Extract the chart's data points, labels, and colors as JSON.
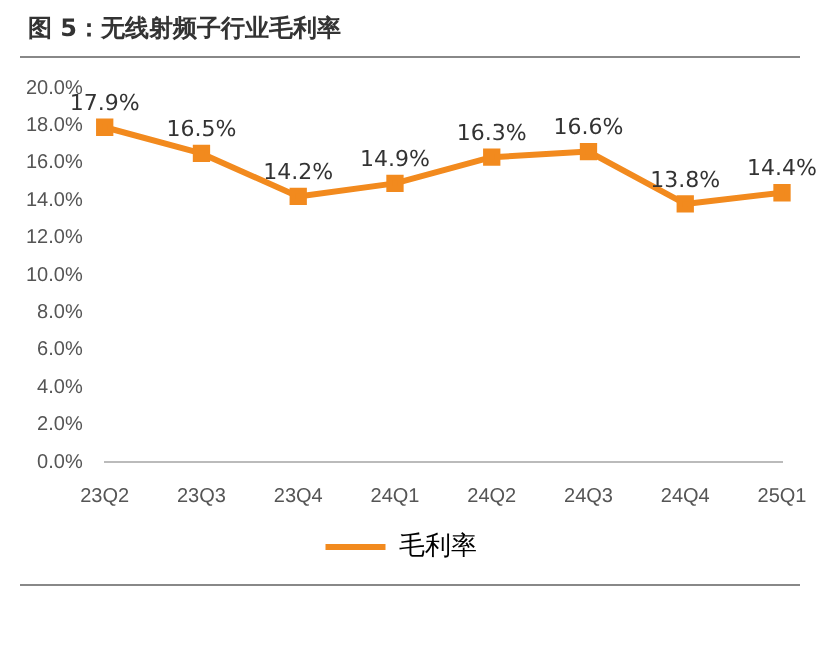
{
  "chart_data": {
    "type": "line",
    "title": "图 5：无线射频子行业毛利率",
    "categories": [
      "23Q2",
      "23Q3",
      "23Q4",
      "24Q1",
      "24Q2",
      "24Q3",
      "24Q4",
      "25Q1"
    ],
    "series": [
      {
        "name": "毛利率",
        "color": "#f28a1e",
        "values": [
          17.9,
          16.5,
          14.2,
          14.9,
          16.3,
          16.6,
          13.8,
          14.4
        ]
      }
    ],
    "value_labels": [
      "17.9%",
      "16.5%",
      "14.2%",
      "14.9%",
      "16.3%",
      "16.6%",
      "13.8%",
      "14.4%"
    ],
    "ylim": [
      0,
      20
    ],
    "yticks": [
      {
        "value": 0,
        "label": "0.0%"
      },
      {
        "value": 2,
        "label": "2.0%"
      },
      {
        "value": 4,
        "label": "4.0%"
      },
      {
        "value": 6,
        "label": "6.0%"
      },
      {
        "value": 8,
        "label": "8.0%"
      },
      {
        "value": 10,
        "label": "10.0%"
      },
      {
        "value": 12,
        "label": "12.0%"
      },
      {
        "value": 14,
        "label": "14.0%"
      },
      {
        "value": 16,
        "label": "16.0%"
      },
      {
        "value": 18,
        "label": "18.0%"
      },
      {
        "value": 20,
        "label": "20.0%"
      }
    ],
    "grid": false,
    "legend": "bottom",
    "marker": "square",
    "line_style": "solid"
  }
}
